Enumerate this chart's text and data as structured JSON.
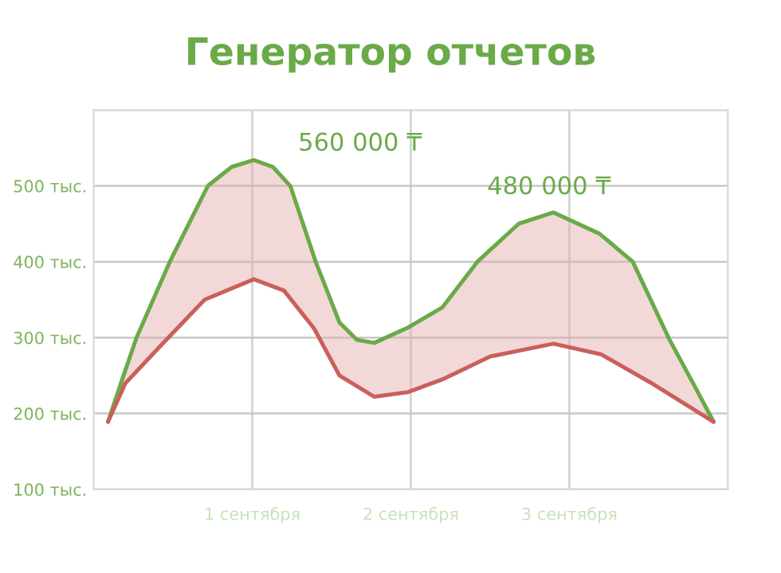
{
  "chart_data": {
    "type": "line",
    "title": "Генератор отчетов",
    "xlim": [
      0,
      4
    ],
    "xticks": [
      {
        "value": 1,
        "label": "1 сентября"
      },
      {
        "value": 2,
        "label": "2 сентября"
      },
      {
        "value": 3,
        "label": "3 сентября"
      }
    ],
    "ylim": [
      100,
      600
    ],
    "yticks": [
      {
        "value": 100,
        "label": "100 тыс."
      },
      {
        "value": 200,
        "label": "200 тыс."
      },
      {
        "value": 300,
        "label": "300 тыс."
      },
      {
        "value": 400,
        "label": "400 тыс."
      },
      {
        "value": 500,
        "label": "500 тыс."
      },
      {
        "value": 600,
        "label": null
      }
    ],
    "grid": true,
    "marker": "none",
    "line_style": "solid",
    "series": [
      {
        "color": "#6aaa48",
        "x": [
          0.09,
          0.18,
          0.27,
          0.48,
          0.72,
          0.87,
          1.01,
          1.13,
          1.24,
          1.4,
          1.55,
          1.66,
          1.77,
          1.98,
          2.2,
          2.42,
          2.68,
          2.9,
          3.19,
          3.4,
          3.63,
          3.78,
          3.91
        ],
        "values": [
          189,
          245,
          300,
          400,
          500,
          525,
          534,
          525,
          500,
          400,
          320,
          297,
          293,
          313,
          340,
          400,
          450,
          465,
          437,
          400,
          298,
          240,
          189
        ]
      },
      {
        "color": "#c9605c",
        "x": [
          0.09,
          0.2,
          0.43,
          0.7,
          1.01,
          1.2,
          1.39,
          1.55,
          1.77,
          1.98,
          2.2,
          2.5,
          2.9,
          3.2,
          3.51,
          3.91
        ],
        "values": [
          189,
          240,
          291,
          350,
          377,
          362,
          312,
          250,
          222,
          228,
          245,
          275,
          292,
          278,
          241,
          189
        ]
      }
    ],
    "annotations": [
      {
        "text": "560 000 ₸",
        "x": 1.01,
        "y": 534
      },
      {
        "text": "480 000 ₸",
        "x": 2.9,
        "y": 465
      }
    ]
  }
}
